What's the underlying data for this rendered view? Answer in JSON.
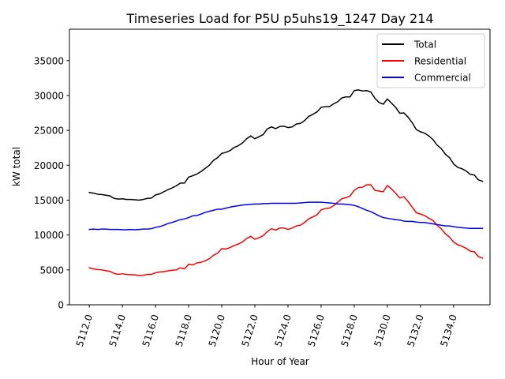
{
  "chart_data": {
    "type": "line",
    "title": "Timeseries Load for P5U p5uhs19_1247  Day 214",
    "xlabel": "Hour of Year",
    "ylabel": "kW total",
    "xlim": [
      5110.8,
      5136.2
    ],
    "ylim": [
      0,
      39500
    ],
    "xticks": [
      5112.0,
      5114.0,
      5116.0,
      5118.0,
      5120.0,
      5122.0,
      5124.0,
      5126.0,
      5128.0,
      5130.0,
      5132.0,
      5134.0
    ],
    "xtick_labels": [
      "5112.0",
      "5114.0",
      "5116.0",
      "5118.0",
      "5120.0",
      "5122.0",
      "5124.0",
      "5126.0",
      "5128.0",
      "5130.0",
      "5132.0",
      "5134.0"
    ],
    "yticks": [
      0,
      5000,
      10000,
      15000,
      20000,
      25000,
      30000,
      35000
    ],
    "ytick_labels": [
      "0",
      "5000",
      "10000",
      "15000",
      "20000",
      "25000",
      "30000",
      "35000"
    ],
    "legend_position": "top-right",
    "grid": false,
    "x": [
      5112.0,
      5112.25,
      5112.5,
      5112.75,
      5113.0,
      5113.25,
      5113.5,
      5113.75,
      5114.0,
      5114.25,
      5114.5,
      5114.75,
      5115.0,
      5115.25,
      5115.5,
      5115.75,
      5116.0,
      5116.25,
      5116.5,
      5116.75,
      5117.0,
      5117.25,
      5117.5,
      5117.75,
      5118.0,
      5118.25,
      5118.5,
      5118.75,
      5119.0,
      5119.25,
      5119.5,
      5119.75,
      5120.0,
      5120.25,
      5120.5,
      5120.75,
      5121.0,
      5121.25,
      5121.5,
      5121.75,
      5122.0,
      5122.25,
      5122.5,
      5122.75,
      5123.0,
      5123.25,
      5123.5,
      5123.75,
      5124.0,
      5124.25,
      5124.5,
      5124.75,
      5125.0,
      5125.25,
      5125.5,
      5125.75,
      5126.0,
      5126.25,
      5126.5,
      5126.75,
      5127.0,
      5127.25,
      5127.5,
      5127.75,
      5128.0,
      5128.25,
      5128.5,
      5128.75,
      5129.0,
      5129.25,
      5129.5,
      5129.75,
      5130.0,
      5130.25,
      5130.5,
      5130.75,
      5131.0,
      5131.25,
      5131.5,
      5131.75,
      5132.0,
      5132.25,
      5132.5,
      5132.75,
      5133.0,
      5133.25,
      5133.5,
      5133.75,
      5134.0,
      5134.25,
      5134.5,
      5134.75,
      5135.0,
      5135.25,
      5135.5,
      5135.75
    ],
    "series": [
      {
        "name": "Total",
        "color": "#000000",
        "values": [
          16100,
          16000,
          15850,
          15800,
          15700,
          15600,
          15250,
          15150,
          15200,
          15100,
          15100,
          15050,
          15000,
          15100,
          15250,
          15300,
          15750,
          15900,
          16200,
          16500,
          16750,
          17050,
          17450,
          17450,
          18300,
          18500,
          18750,
          19100,
          19550,
          20000,
          20700,
          21100,
          21700,
          21850,
          22100,
          22550,
          22800,
          23200,
          23800,
          24200,
          23800,
          24100,
          24400,
          25200,
          25500,
          25250,
          25550,
          25600,
          25400,
          25500,
          25900,
          26000,
          26400,
          27000,
          27300,
          27650,
          28300,
          28400,
          28400,
          28800,
          29100,
          29650,
          29800,
          29800,
          30700,
          30800,
          30650,
          30700,
          30500,
          29600,
          29000,
          28750,
          29500,
          28900,
          28300,
          27450,
          27500,
          26900,
          26100,
          25100,
          24800,
          24600,
          24200,
          23700,
          22900,
          22400,
          21600,
          21100,
          20200,
          19700,
          19500,
          19200,
          18700,
          18600,
          17900,
          17700
        ]
      },
      {
        "name": "Residential",
        "color": "#ff0000",
        "values": [
          5300,
          5150,
          5050,
          5000,
          4900,
          4800,
          4500,
          4350,
          4450,
          4350,
          4300,
          4300,
          4200,
          4250,
          4350,
          4350,
          4600,
          4700,
          4750,
          4850,
          4950,
          5000,
          5300,
          5150,
          5800,
          5700,
          6000,
          6100,
          6300,
          6600,
          7100,
          7400,
          8050,
          8000,
          8200,
          8500,
          8700,
          9000,
          9500,
          9800,
          9400,
          9600,
          9900,
          10500,
          10900,
          10700,
          11000,
          11000,
          10800,
          11000,
          11300,
          11400,
          11800,
          12300,
          12600,
          12900,
          13600,
          13800,
          13850,
          14200,
          14700,
          15200,
          15350,
          15600,
          16400,
          16800,
          16850,
          17200,
          17200,
          16400,
          16300,
          16200,
          17100,
          16600,
          16000,
          15300,
          15500,
          14800,
          14000,
          13200,
          13000,
          12800,
          12400,
          12100,
          11400,
          10900,
          10200,
          9700,
          9000,
          8600,
          8400,
          8100,
          7700,
          7600,
          6900,
          6700
        ]
      },
      {
        "name": "Commercial",
        "color": "#0000ff",
        "values": [
          10800,
          10850,
          10800,
          10850,
          10850,
          10800,
          10800,
          10800,
          10750,
          10750,
          10800,
          10750,
          10800,
          10850,
          10850,
          10900,
          11100,
          11200,
          11400,
          11650,
          11800,
          12000,
          12200,
          12300,
          12500,
          12750,
          12800,
          13000,
          13250,
          13400,
          13550,
          13700,
          13700,
          13850,
          14000,
          14100,
          14200,
          14300,
          14350,
          14400,
          14450,
          14450,
          14500,
          14500,
          14550,
          14550,
          14550,
          14550,
          14550,
          14550,
          14550,
          14600,
          14650,
          14700,
          14700,
          14700,
          14700,
          14650,
          14600,
          14550,
          14450,
          14450,
          14400,
          14350,
          14250,
          14050,
          13800,
          13550,
          13350,
          13050,
          12750,
          12500,
          12400,
          12300,
          12200,
          12150,
          12000,
          11950,
          11950,
          11850,
          11800,
          11800,
          11700,
          11600,
          11500,
          11400,
          11300,
          11300,
          11200,
          11100,
          11050,
          11000,
          10950,
          10950,
          10950,
          10950
        ]
      }
    ]
  }
}
